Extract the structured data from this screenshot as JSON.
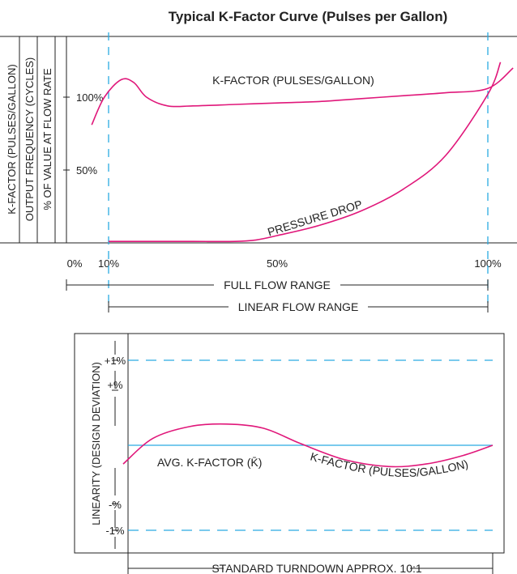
{
  "chart_data": [
    {
      "type": "line",
      "title": "Typical K-Factor Curve (Pulses per Gallon)",
      "ylabel_lines": [
        "K-FACTOR (PULSES/GALLON)",
        "OUTPUT FREQUENCY (CYCLES)",
        "% OF VALUE AT FLOW RATE"
      ],
      "x_ticks": [
        "0%",
        "10%",
        "50%",
        "100%"
      ],
      "y_ticks": [
        "100%",
        "50%"
      ],
      "xlim": [
        0,
        106
      ],
      "ylim": [
        0,
        130
      ],
      "series": [
        {
          "name": "K-FACTOR (PULSES/GALLON)",
          "color": "#e0177a",
          "x": [
            6,
            9,
            13,
            16,
            19,
            24,
            30,
            40,
            50,
            60,
            70,
            80,
            90,
            100,
            106
          ],
          "y": [
            81,
            100,
            112,
            110,
            100,
            94,
            94,
            95,
            96,
            97,
            99,
            101,
            103,
            106,
            120
          ]
        },
        {
          "name": "PRESSURE DROP",
          "color": "#e0177a",
          "x": [
            10,
            20,
            30,
            40,
            45,
            50,
            60,
            70,
            80,
            90,
            100,
            103
          ],
          "y": [
            1,
            1,
            1,
            1,
            2,
            5,
            12,
            22,
            37,
            60,
            102,
            124
          ]
        }
      ],
      "range_markers": [
        {
          "label": "FULL FLOW RANGE",
          "from": "0%",
          "to": "100%"
        },
        {
          "label": "LINEAR FLOW RANGE",
          "from": "10%",
          "to": "100%"
        }
      ],
      "colors": {
        "curve": "#e0177a",
        "marker_line": "#2aaae2",
        "axis": "#222222"
      }
    },
    {
      "type": "line",
      "ylabel": "LINEARITY (DESIGN DEVIATION)",
      "y_ticks": [
        "+1%",
        "+%",
        "-%",
        "-1%"
      ],
      "reference_lines": [
        {
          "label": "+1%",
          "value": 1,
          "style": "dashed"
        },
        {
          "label": "-1%",
          "value": -1,
          "style": "dashed"
        },
        {
          "label": "AVG. K-FACTOR (K̄)",
          "value": 0,
          "style": "solid"
        }
      ],
      "xlim": [
        0,
        100
      ],
      "ylim": [
        -1.2,
        1.3
      ],
      "series": [
        {
          "name": "K-FACTOR (PULSES/GALLON)",
          "color": "#e0177a",
          "x": [
            0,
            8,
            18,
            28,
            38,
            48,
            60,
            72,
            82,
            92,
            100
          ],
          "y": [
            -0.22,
            0.08,
            0.22,
            0.25,
            0.2,
            0.02,
            -0.17,
            -0.25,
            -0.22,
            -0.12,
            0
          ]
        }
      ],
      "range_marker": {
        "label": "STANDARD TURNDOWN APPROX. 10:1"
      },
      "colors": {
        "curve": "#e0177a",
        "reference": "#2aaae2",
        "axis": "#222222"
      }
    }
  ]
}
